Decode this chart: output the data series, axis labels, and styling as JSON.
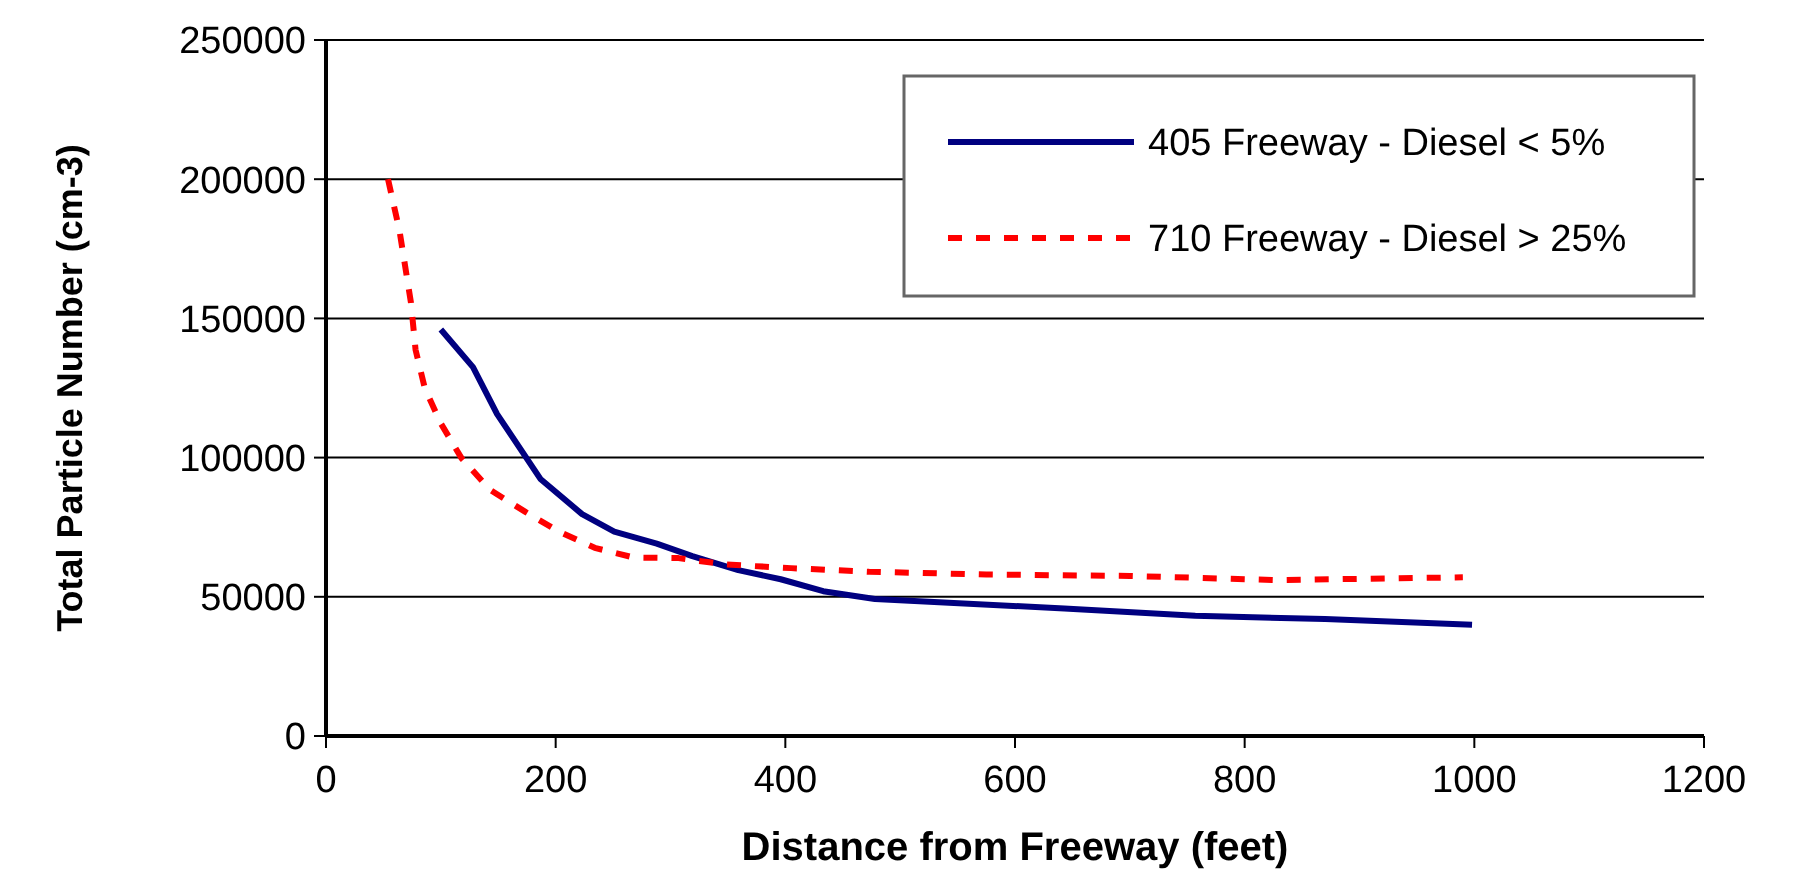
{
  "chart_data": {
    "type": "line",
    "xlabel": "Distance from Freeway (feet)",
    "ylabel": "Total Particle Number (cm-3)",
    "xlim": [
      0,
      1200
    ],
    "xticks": [
      0,
      200,
      400,
      600,
      800,
      1000,
      1200
    ],
    "ylim": [
      0,
      250000
    ],
    "yticks": [
      0,
      50000,
      100000,
      150000,
      200000,
      250000
    ],
    "grid": "y",
    "legend": "top right",
    "series": [
      {
        "name": "405 Freeway - Diesel < 5%",
        "color": "#000080",
        "line_style": "solid",
        "x": [
          100,
          128,
          149,
          187,
          223,
          251,
          288,
          319,
          359,
          396,
          433,
          478,
          643,
          757,
          870,
          998
        ],
        "values": [
          146000,
          132500,
          115600,
          92200,
          79700,
          73400,
          69100,
          64600,
          59600,
          56300,
          52000,
          49200,
          45800,
          43200,
          42000,
          40000
        ]
      },
      {
        "name": "710 Freeway - Diesel > 25%",
        "color": "#ff0000",
        "line_style": "dashed",
        "x": [
          54,
          64,
          74,
          78,
          86,
          100,
          118,
          143,
          174,
          203,
          234,
          268,
          307,
          348,
          405,
          473,
          575,
          700,
          828,
          990
        ],
        "values": [
          200000,
          181500,
          155600,
          138700,
          125000,
          112300,
          99800,
          88400,
          80400,
          73400,
          67600,
          64100,
          63900,
          61600,
          60300,
          59000,
          58000,
          57500,
          56000,
          57000
        ]
      }
    ]
  }
}
